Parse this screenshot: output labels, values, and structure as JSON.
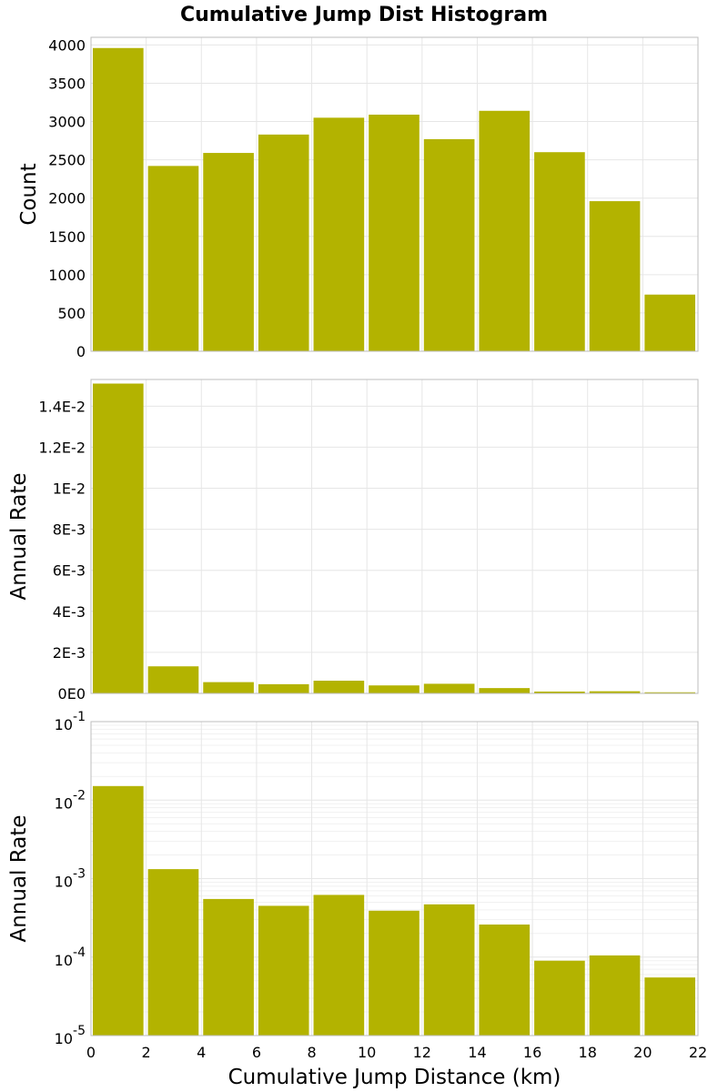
{
  "figure": {
    "title": "Cumulative Jump Dist Histogram",
    "bar_color": "#b3b300",
    "grid_color": "#e6e6e6",
    "frame_color": "#bdbdbd"
  },
  "chart_data": [
    {
      "type": "bar",
      "name": "count-panel",
      "title": "Cumulative Jump Dist Histogram",
      "xlabel": "",
      "ylabel": "Count",
      "bin_edges": [
        0,
        2,
        4,
        6,
        8,
        10,
        12,
        14,
        16,
        18,
        20,
        22
      ],
      "values": [
        3960,
        2420,
        2590,
        2830,
        3050,
        3090,
        2770,
        3140,
        2600,
        1960,
        740
      ],
      "xlim": [
        0,
        22
      ],
      "ylim": [
        0,
        4100
      ],
      "yscale": "linear",
      "ytick_values": [
        0,
        500,
        1000,
        1500,
        2000,
        2500,
        3000,
        3500,
        4000
      ],
      "ytick_labels": [
        "0",
        "500",
        "1000",
        "1500",
        "2000",
        "2500",
        "3000",
        "3500",
        "4000"
      ],
      "grid": true
    },
    {
      "type": "bar",
      "name": "rate-linear-panel",
      "xlabel": "",
      "ylabel": "Annual Rate",
      "bin_edges": [
        0,
        2,
        4,
        6,
        8,
        10,
        12,
        14,
        16,
        18,
        20,
        22
      ],
      "values": [
        0.0151,
        0.00132,
        0.00055,
        0.00045,
        0.00062,
        0.00039,
        0.00047,
        0.00026,
        9e-05,
        0.000105,
        5.5e-05
      ],
      "xlim": [
        0,
        22
      ],
      "ylim": [
        0,
        0.0153
      ],
      "yscale": "linear",
      "ytick_values": [
        0,
        0.002,
        0.004,
        0.006,
        0.008,
        0.01,
        0.012,
        0.014
      ],
      "ytick_labels": [
        "0E0",
        "2E-3",
        "4E-3",
        "6E-3",
        "8E-3",
        "1E-2",
        "1.2E-2",
        "1.4E-2"
      ],
      "grid": true
    },
    {
      "type": "bar",
      "name": "rate-log-panel",
      "xlabel": "Cumulative Jump Distance (km)",
      "ylabel": "Annual Rate",
      "bin_edges": [
        0,
        2,
        4,
        6,
        8,
        10,
        12,
        14,
        16,
        18,
        20,
        22
      ],
      "values": [
        0.0151,
        0.00132,
        0.00055,
        0.00045,
        0.00062,
        0.00039,
        0.00047,
        0.00026,
        9e-05,
        0.000105,
        5.5e-05
      ],
      "xlim": [
        0,
        22
      ],
      "ylim": [
        1e-05,
        0.1
      ],
      "yscale": "log",
      "ytick_values": [
        1e-05,
        0.0001,
        0.001,
        0.01,
        0.1
      ],
      "ytick_labels": [
        {
          "base": "10",
          "exp": "-5"
        },
        {
          "base": "10",
          "exp": "-4"
        },
        {
          "base": "10",
          "exp": "-3"
        },
        {
          "base": "10",
          "exp": "-2"
        },
        {
          "base": "10",
          "exp": "-1"
        }
      ],
      "xtick_values": [
        0,
        2,
        4,
        6,
        8,
        10,
        12,
        14,
        16,
        18,
        20,
        22
      ],
      "xtick_labels": [
        "0",
        "2",
        "4",
        "6",
        "8",
        "10",
        "12",
        "14",
        "16",
        "18",
        "20",
        "22"
      ],
      "grid": true
    }
  ]
}
